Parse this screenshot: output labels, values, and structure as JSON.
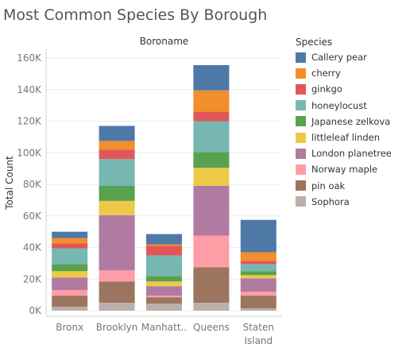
{
  "title": "Most Common Species By Borough",
  "chart_data": {
    "type": "bar",
    "stacked": true,
    "column_header": "Boroname",
    "ylabel": "Total Count",
    "xlabel": "",
    "ylim": [
      0,
      160000
    ],
    "y_ticks": [
      0,
      20000,
      40000,
      60000,
      80000,
      100000,
      120000,
      140000,
      160000
    ],
    "y_tick_labels": [
      "0K",
      "20K",
      "40K",
      "60K",
      "80K",
      "100K",
      "120K",
      "140K",
      "160K"
    ],
    "categories": [
      "Bronx",
      "Brooklyn",
      "Manhatt..",
      "Queens",
      "Staten Island"
    ],
    "category_labels": [
      [
        "Bronx"
      ],
      [
        "Brooklyn"
      ],
      [
        "Manhatt.."
      ],
      [
        "Queens"
      ],
      [
        "Staten",
        "Island"
      ]
    ],
    "legend_title": "Species",
    "legend_position": "right",
    "grid": "horizontal",
    "series": [
      {
        "name": "Sophora",
        "color": "#bab0ac",
        "values": [
          2500,
          5000,
          4500,
          5000,
          1500
        ]
      },
      {
        "name": "pin oak",
        "color": "#9c755f",
        "values": [
          7000,
          13500,
          4000,
          22500,
          8000
        ]
      },
      {
        "name": "Norway maple",
        "color": "#ff9da7",
        "values": [
          3500,
          7000,
          1000,
          20000,
          2500
        ]
      },
      {
        "name": "London planetree",
        "color": "#b07aa1",
        "values": [
          8000,
          35000,
          6000,
          31500,
          8500
        ]
      },
      {
        "name": "littleleaf linden",
        "color": "#edc948",
        "values": [
          4000,
          9000,
          3000,
          11500,
          2000
        ]
      },
      {
        "name": "Japanese zelkova",
        "color": "#59a14f",
        "values": [
          4500,
          9500,
          3500,
          10000,
          2500
        ]
      },
      {
        "name": "honeylocust",
        "color": "#76b7b2",
        "values": [
          10000,
          17000,
          13000,
          19500,
          4500
        ]
      },
      {
        "name": "ginkgo",
        "color": "#e15759",
        "values": [
          3000,
          6000,
          6000,
          6000,
          2000
        ]
      },
      {
        "name": "cherry",
        "color": "#f28e2b",
        "values": [
          3500,
          5500,
          1000,
          13500,
          5500
        ]
      },
      {
        "name": "Callery pear",
        "color": "#4e79a7",
        "values": [
          4000,
          9500,
          6500,
          16000,
          20500
        ]
      }
    ]
  },
  "legend": [
    {
      "name": "Callery pear",
      "color": "#4e79a7"
    },
    {
      "name": "cherry",
      "color": "#f28e2b"
    },
    {
      "name": "ginkgo",
      "color": "#e15759"
    },
    {
      "name": "honeylocust",
      "color": "#76b7b2"
    },
    {
      "name": "Japanese zelkova",
      "color": "#59a14f"
    },
    {
      "name": "littleleaf linden",
      "color": "#edc948"
    },
    {
      "name": "London planetree",
      "color": "#b07aa1"
    },
    {
      "name": "Norway maple",
      "color": "#ff9da7"
    },
    {
      "name": "pin oak",
      "color": "#9c755f"
    },
    {
      "name": "Sophora",
      "color": "#bab0ac"
    }
  ]
}
